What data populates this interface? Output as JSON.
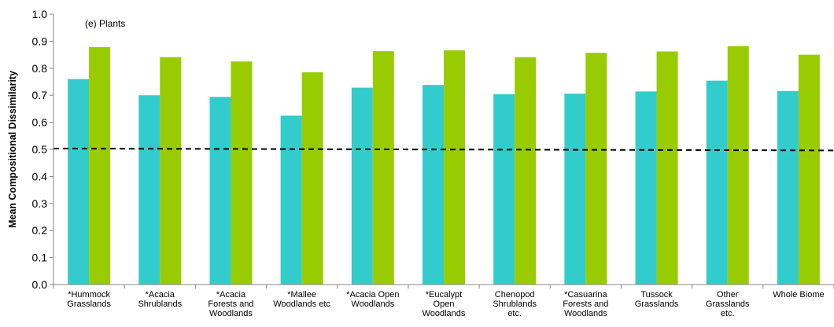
{
  "chart_data": {
    "type": "bar",
    "panel_label": "(e) Plants",
    "ylabel": "Mean Compositional Dissimilarity",
    "xlabel": "",
    "ylim": [
      0.0,
      1.0
    ],
    "yticks": [
      "0.0",
      "0.1",
      "0.2",
      "0.3",
      "0.4",
      "0.5",
      "0.6",
      "0.7",
      "0.8",
      "0.9",
      "1.0"
    ],
    "grid": false,
    "legend": "none",
    "categories": [
      [
        "*Hummock",
        "Grasslands"
      ],
      [
        "*Acacia",
        "Shrublands"
      ],
      [
        "*Acacia",
        "Forests and",
        "Woodlands"
      ],
      [
        "*Mallee",
        "Woodlands etc"
      ],
      [
        "*Acacia Open",
        "Woodlands"
      ],
      [
        "*Eucalypt",
        "Open",
        "Woodlands"
      ],
      [
        "Chenopod",
        "Shrublands",
        "etc."
      ],
      [
        "*Casuarina",
        "Forests and",
        "Woodlands"
      ],
      [
        "Tussock",
        "Grasslands"
      ],
      [
        "Other",
        "Grasslands",
        "etc."
      ],
      [
        "Whole Biome"
      ]
    ],
    "series": [
      {
        "color": "#33CCCC",
        "values": [
          0.76,
          0.7,
          0.694,
          0.625,
          0.728,
          0.738,
          0.704,
          0.706,
          0.714,
          0.754,
          0.716
        ]
      },
      {
        "color": "#99CC00",
        "values": [
          0.878,
          0.841,
          0.825,
          0.785,
          0.863,
          0.866,
          0.841,
          0.857,
          0.862,
          0.882,
          0.85
        ]
      }
    ],
    "reference_line": {
      "style": "dashed",
      "color": "#000000",
      "y_start": 0.503,
      "y_end": 0.496
    }
  }
}
